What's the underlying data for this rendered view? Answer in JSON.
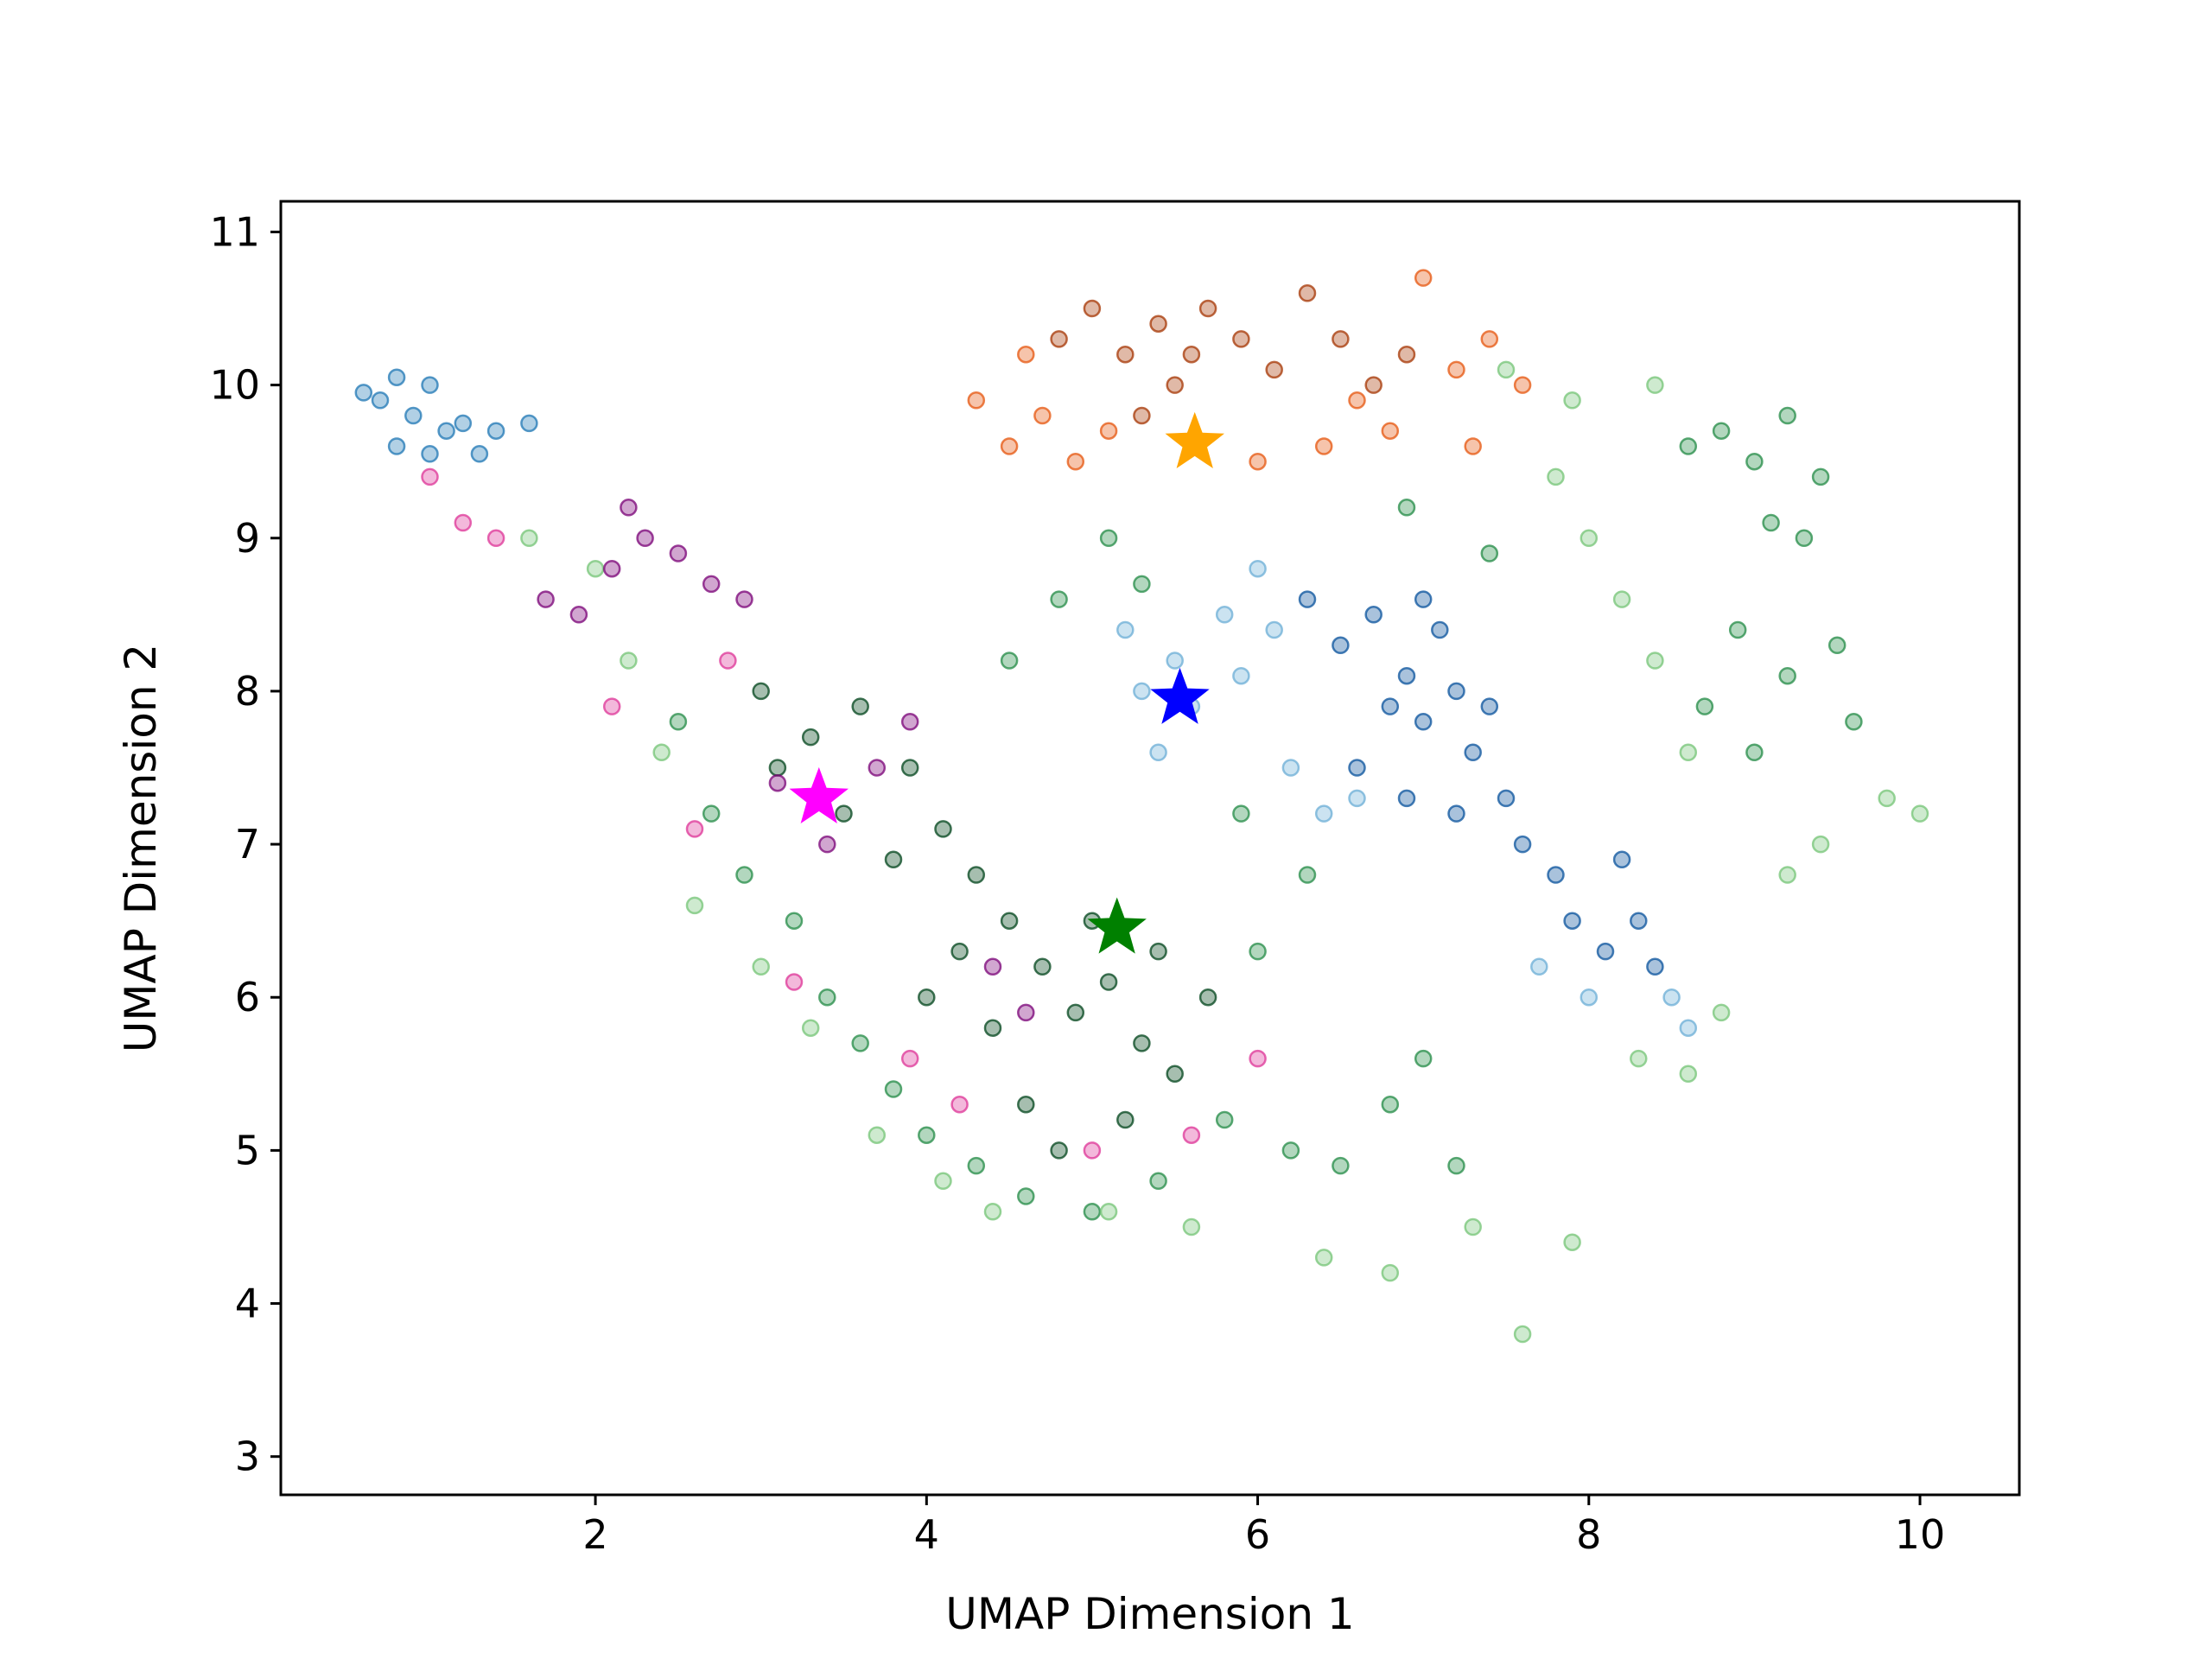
{
  "chart_data": {
    "type": "scatter",
    "title": "",
    "xlabel": "UMAP Dimension 1",
    "ylabel": "UMAP Dimension 2",
    "xlim": [
      0.1,
      10.6
    ],
    "ylim": [
      2.75,
      11.2
    ],
    "xticks": [
      2,
      4,
      6,
      8,
      10
    ],
    "yticks": [
      3,
      4,
      5,
      6,
      7,
      8,
      9,
      10,
      11
    ],
    "grid": false,
    "legend": "none",
    "clusters": [
      {
        "name": "",
        "color": "#1f77b4",
        "shade": "light-blue",
        "points": [
          [
            0.7,
            9.9
          ],
          [
            0.8,
            10.05
          ],
          [
            0.9,
            9.8
          ],
          [
            1.0,
            10.0
          ],
          [
            1.1,
            9.7
          ],
          [
            0.8,
            9.6
          ],
          [
            1.2,
            9.75
          ],
          [
            1.4,
            9.7
          ],
          [
            1.6,
            9.75
          ],
          [
            1.0,
            9.55
          ],
          [
            0.6,
            9.95
          ],
          [
            1.3,
            9.55
          ]
        ]
      },
      {
        "name": "",
        "color": "#08519c",
        "shade": "dark-blue",
        "points": [
          [
            6.5,
            8.3
          ],
          [
            6.7,
            8.5
          ],
          [
            6.9,
            8.1
          ],
          [
            7.0,
            7.8
          ],
          [
            7.1,
            8.4
          ],
          [
            7.2,
            8.0
          ],
          [
            7.3,
            7.6
          ],
          [
            7.4,
            7.9
          ],
          [
            7.0,
            8.6
          ],
          [
            6.8,
            7.9
          ],
          [
            7.5,
            7.3
          ],
          [
            7.6,
            7.0
          ],
          [
            7.8,
            6.8
          ],
          [
            7.9,
            6.5
          ],
          [
            8.1,
            6.3
          ],
          [
            8.3,
            6.5
          ],
          [
            8.4,
            6.2
          ],
          [
            8.2,
            6.9
          ],
          [
            6.6,
            7.5
          ],
          [
            7.2,
            7.2
          ],
          [
            6.3,
            8.6
          ],
          [
            6.9,
            7.3
          ]
        ]
      },
      {
        "name": "",
        "color": "#6baed6",
        "shade": "mid-blue",
        "points": [
          [
            5.3,
            8.0
          ],
          [
            5.5,
            8.2
          ],
          [
            5.8,
            8.5
          ],
          [
            6.0,
            8.8
          ],
          [
            5.4,
            7.6
          ],
          [
            6.2,
            7.5
          ],
          [
            6.4,
            7.2
          ],
          [
            6.6,
            7.3
          ],
          [
            5.9,
            8.1
          ],
          [
            5.6,
            7.9
          ],
          [
            8.0,
            6.0
          ],
          [
            8.5,
            6.0
          ],
          [
            8.6,
            5.8
          ],
          [
            7.7,
            6.2
          ],
          [
            6.1,
            8.4
          ],
          [
            5.2,
            8.4
          ]
        ]
      },
      {
        "name": "",
        "color": "#a63603",
        "shade": "dark-orange",
        "points": [
          [
            4.8,
            10.3
          ],
          [
            5.0,
            10.5
          ],
          [
            5.2,
            10.2
          ],
          [
            5.4,
            10.4
          ],
          [
            5.5,
            10.0
          ],
          [
            5.7,
            10.5
          ],
          [
            5.9,
            10.3
          ],
          [
            6.1,
            10.1
          ],
          [
            6.3,
            10.6
          ],
          [
            6.5,
            10.3
          ],
          [
            6.7,
            10.0
          ],
          [
            6.9,
            10.2
          ],
          [
            5.3,
            9.8
          ],
          [
            5.6,
            10.2
          ]
        ]
      },
      {
        "name": "",
        "color": "#e6550d",
        "shade": "orange",
        "points": [
          [
            4.3,
            9.9
          ],
          [
            4.5,
            9.6
          ],
          [
            4.7,
            9.8
          ],
          [
            4.9,
            9.5
          ],
          [
            5.1,
            9.7
          ],
          [
            6.4,
            9.6
          ],
          [
            6.6,
            9.9
          ],
          [
            6.8,
            9.7
          ],
          [
            7.0,
            10.7
          ],
          [
            7.2,
            10.1
          ],
          [
            7.4,
            10.3
          ],
          [
            7.6,
            10.0
          ],
          [
            4.6,
            10.2
          ],
          [
            7.3,
            9.6
          ],
          [
            6.0,
            9.5
          ]
        ]
      },
      {
        "name": "",
        "color": "#00441b",
        "shade": "dark-green",
        "points": [
          [
            3.0,
            8.0
          ],
          [
            3.3,
            7.7
          ],
          [
            3.6,
            7.9
          ],
          [
            3.9,
            7.5
          ],
          [
            4.1,
            7.1
          ],
          [
            4.3,
            6.8
          ],
          [
            4.5,
            6.5
          ],
          [
            4.7,
            6.2
          ],
          [
            4.9,
            5.9
          ],
          [
            5.1,
            6.1
          ],
          [
            5.3,
            5.7
          ],
          [
            5.5,
            5.5
          ],
          [
            5.7,
            6.0
          ],
          [
            5.0,
            6.5
          ],
          [
            4.4,
            5.8
          ],
          [
            4.6,
            5.3
          ],
          [
            4.8,
            5.0
          ],
          [
            5.2,
            5.2
          ],
          [
            3.5,
            7.2
          ],
          [
            3.8,
            6.9
          ],
          [
            4.2,
            6.3
          ],
          [
            5.4,
            6.3
          ],
          [
            3.1,
            7.5
          ],
          [
            4.0,
            6.0
          ]
        ]
      },
      {
        "name": "",
        "color": "#238b45",
        "shade": "green",
        "points": [
          [
            2.5,
            7.8
          ],
          [
            2.7,
            7.2
          ],
          [
            2.9,
            6.8
          ],
          [
            3.2,
            6.5
          ],
          [
            3.4,
            6.0
          ],
          [
            3.6,
            5.7
          ],
          [
            3.8,
            5.4
          ],
          [
            4.0,
            5.1
          ],
          [
            4.3,
            4.9
          ],
          [
            4.6,
            4.7
          ],
          [
            5.0,
            4.6
          ],
          [
            5.4,
            4.8
          ],
          [
            5.8,
            5.2
          ],
          [
            6.2,
            5.0
          ],
          [
            6.5,
            4.9
          ],
          [
            6.8,
            5.3
          ],
          [
            7.0,
            5.6
          ],
          [
            7.2,
            4.9
          ],
          [
            6.0,
            6.3
          ],
          [
            6.3,
            6.8
          ],
          [
            5.9,
            7.2
          ],
          [
            4.5,
            8.2
          ],
          [
            4.8,
            8.6
          ],
          [
            5.1,
            9.0
          ],
          [
            5.3,
            8.7
          ],
          [
            8.8,
            9.7
          ],
          [
            9.0,
            9.5
          ],
          [
            9.2,
            9.8
          ],
          [
            9.4,
            9.4
          ],
          [
            9.1,
            9.1
          ],
          [
            8.6,
            9.6
          ],
          [
            9.3,
            9.0
          ],
          [
            8.9,
            8.4
          ],
          [
            9.2,
            8.1
          ],
          [
            9.5,
            8.3
          ],
          [
            8.7,
            7.9
          ],
          [
            9.0,
            7.6
          ],
          [
            9.6,
            7.8
          ],
          [
            6.9,
            9.2
          ],
          [
            7.4,
            8.9
          ]
        ]
      },
      {
        "name": "",
        "color": "#74c476",
        "shade": "light-green",
        "points": [
          [
            1.6,
            9.0
          ],
          [
            2.0,
            8.8
          ],
          [
            2.2,
            8.2
          ],
          [
            2.4,
            7.6
          ],
          [
            2.6,
            6.6
          ],
          [
            3.0,
            6.2
          ],
          [
            3.3,
            5.8
          ],
          [
            3.7,
            5.1
          ],
          [
            4.1,
            4.8
          ],
          [
            4.4,
            4.6
          ],
          [
            5.1,
            4.6
          ],
          [
            5.6,
            4.5
          ],
          [
            6.4,
            4.3
          ],
          [
            6.8,
            4.2
          ],
          [
            7.3,
            4.5
          ],
          [
            7.6,
            3.8
          ],
          [
            7.9,
            4.4
          ],
          [
            8.3,
            5.6
          ],
          [
            8.6,
            5.5
          ],
          [
            8.8,
            5.9
          ],
          [
            7.8,
            9.4
          ],
          [
            8.0,
            9.0
          ],
          [
            8.2,
            8.6
          ],
          [
            8.4,
            8.2
          ],
          [
            8.6,
            7.6
          ],
          [
            9.8,
            7.3
          ],
          [
            10.0,
            7.2
          ],
          [
            9.4,
            7.0
          ],
          [
            9.2,
            6.8
          ],
          [
            7.9,
            9.9
          ],
          [
            8.4,
            10.0
          ],
          [
            7.5,
            10.1
          ]
        ]
      },
      {
        "name": "",
        "color": "#7a0177",
        "shade": "purple",
        "points": [
          [
            1.7,
            8.6
          ],
          [
            1.9,
            8.5
          ],
          [
            2.1,
            8.8
          ],
          [
            2.3,
            9.0
          ],
          [
            2.5,
            8.9
          ],
          [
            2.7,
            8.7
          ],
          [
            2.2,
            9.2
          ],
          [
            3.1,
            7.4
          ],
          [
            3.4,
            7.0
          ],
          [
            4.4,
            6.2
          ],
          [
            4.6,
            5.9
          ],
          [
            3.9,
            7.8
          ],
          [
            3.7,
            7.5
          ],
          [
            2.9,
            8.6
          ]
        ]
      },
      {
        "name": "",
        "color": "#dd3497",
        "shade": "pink",
        "points": [
          [
            1.2,
            9.1
          ],
          [
            1.4,
            9.0
          ],
          [
            1.0,
            9.4
          ],
          [
            2.1,
            7.9
          ],
          [
            2.6,
            7.1
          ],
          [
            3.2,
            6.1
          ],
          [
            3.9,
            5.6
          ],
          [
            4.2,
            5.3
          ],
          [
            5.6,
            5.1
          ],
          [
            6.0,
            5.6
          ],
          [
            5.0,
            5.0
          ],
          [
            2.8,
            8.2
          ]
        ]
      }
    ],
    "centroids": [
      {
        "name": "",
        "color": "#ffa500",
        "x": 5.62,
        "y": 9.62
      },
      {
        "name": "",
        "color": "#0000ff",
        "x": 5.53,
        "y": 7.95
      },
      {
        "name": "",
        "color": "#ff00ff",
        "x": 3.35,
        "y": 7.3
      },
      {
        "name": "",
        "color": "#008000",
        "x": 5.15,
        "y": 6.45
      }
    ]
  }
}
